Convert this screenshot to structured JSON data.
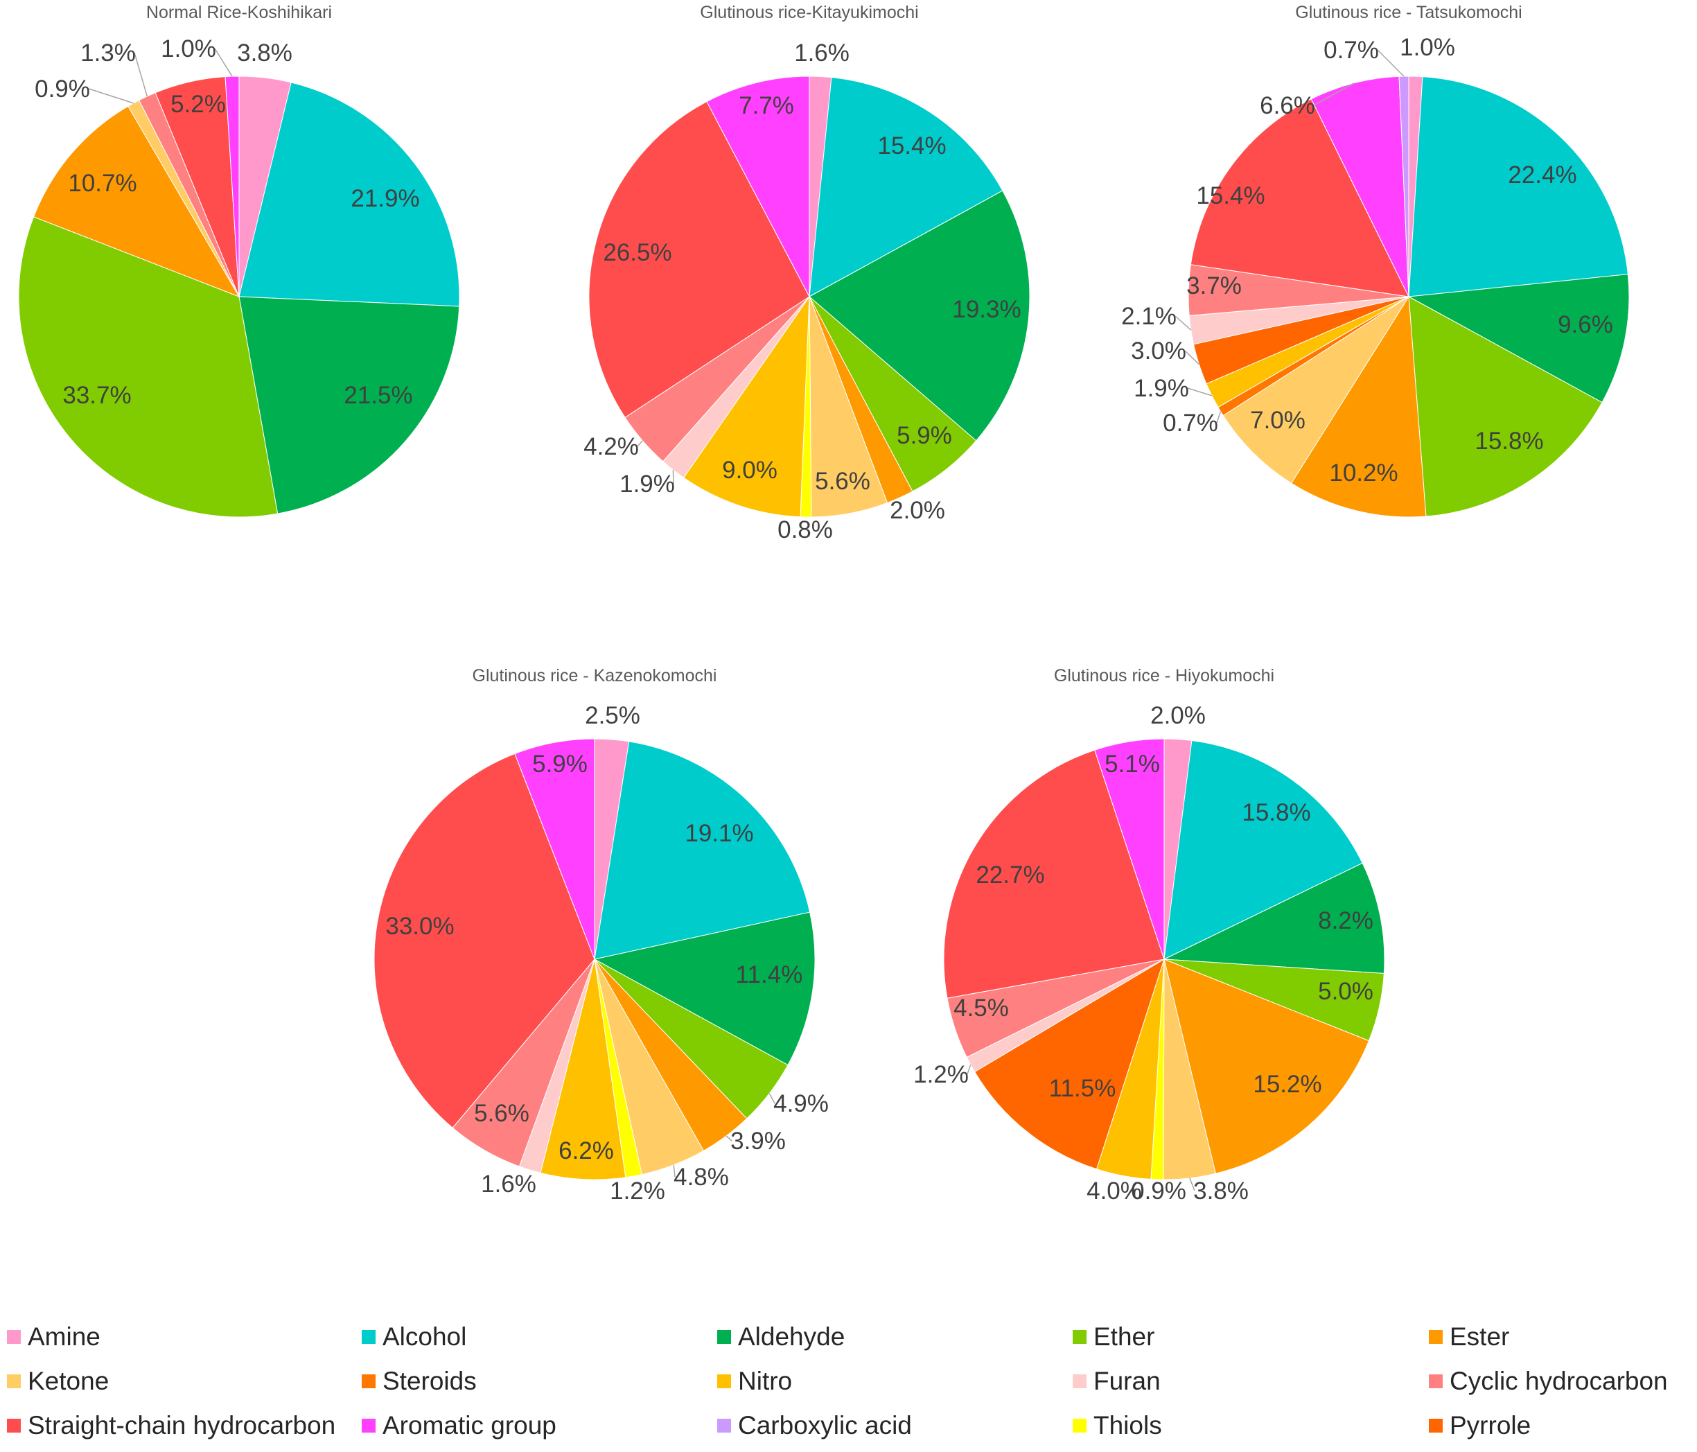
{
  "chart_data": {
    "type": "pie",
    "category_colors": {
      "Amine": "#ff99cc",
      "Alcohol": "#00cccc",
      "Aldehyde": "#00b050",
      "Ether": "#80cc00",
      "Ester": "#ff9900",
      "Ketone": "#ffcc66",
      "Steroids": "#ff7700",
      "Nitro": "#ffc000",
      "Furan": "#ffcccc",
      "Cyclic hydrocarbon": "#ff8080",
      "Straight-chain hydrocarbon": "#ff4d4d",
      "Aromatic group": "#ff40ff",
      "Carboxylic acid": "#cc99ff",
      "Thiols": "#ffff00",
      "Pyrrole": "#ff6600"
    },
    "legend": [
      "Amine",
      "Alcohol",
      "Aldehyde",
      "Ether",
      "Ester",
      "Ketone",
      "Steroids",
      "Nitro",
      "Furan",
      "Cyclic hydrocarbon",
      "Straight-chain hydrocarbon",
      "Aromatic group",
      "Carboxylic acid",
      "Thiols",
      "Pyrrole"
    ],
    "pies": [
      {
        "title": "Normal Rice-Koshihikari",
        "slices": [
          {
            "category": "Amine",
            "value": 3.8,
            "label": "3.8%"
          },
          {
            "category": "Alcohol",
            "value": 21.9,
            "label": "21.9%"
          },
          {
            "category": "Aldehyde",
            "value": 21.5,
            "label": "21.5%"
          },
          {
            "category": "Ether",
            "value": 33.7,
            "label": "33.7%"
          },
          {
            "category": "Ester",
            "value": 10.7,
            "label": "10.7%"
          },
          {
            "category": "Ketone",
            "value": 0.9,
            "label": "0.9%"
          },
          {
            "category": "Cyclic hydrocarbon",
            "value": 1.3,
            "label": "1.3%"
          },
          {
            "category": "Straight-chain hydrocarbon",
            "value": 5.2,
            "label": "5.2%"
          },
          {
            "category": "Aromatic group",
            "value": 1.0,
            "label": "1.0%"
          }
        ]
      },
      {
        "title": "Glutinous rice-Kitayukimochi",
        "slices": [
          {
            "category": "Amine",
            "value": 1.6,
            "label": "1.6%"
          },
          {
            "category": "Alcohol",
            "value": 15.4,
            "label": "15.4%"
          },
          {
            "category": "Aldehyde",
            "value": 19.3,
            "label": "19.3%"
          },
          {
            "category": "Ether",
            "value": 5.9,
            "label": "5.9%"
          },
          {
            "category": "Ester",
            "value": 2.0,
            "label": "2.0%"
          },
          {
            "category": "Ketone",
            "value": 5.6,
            "label": "5.6%"
          },
          {
            "category": "Thiols",
            "value": 0.8,
            "label": "0.8%"
          },
          {
            "category": "Nitro",
            "value": 9.0,
            "label": "9.0%"
          },
          {
            "category": "Furan",
            "value": 1.9,
            "label": "1.9%"
          },
          {
            "category": "Cyclic hydrocarbon",
            "value": 4.2,
            "label": "4.2%"
          },
          {
            "category": "Straight-chain hydrocarbon",
            "value": 26.5,
            "label": "26.5%"
          },
          {
            "category": "Aromatic group",
            "value": 7.7,
            "label": "7.7%"
          }
        ]
      },
      {
        "title": "Glutinous rice - Tatsukomochi",
        "slices": [
          {
            "category": "Amine",
            "value": 1.0,
            "label": "1.0%"
          },
          {
            "category": "Alcohol",
            "value": 22.4,
            "label": "22.4%"
          },
          {
            "category": "Aldehyde",
            "value": 9.6,
            "label": "9.6%"
          },
          {
            "category": "Ether",
            "value": 15.8,
            "label": "15.8%"
          },
          {
            "category": "Ester",
            "value": 10.2,
            "label": "10.2%"
          },
          {
            "category": "Ketone",
            "value": 7.0,
            "label": "7.0%"
          },
          {
            "category": "Steroids",
            "value": 0.7,
            "label": "0.7%"
          },
          {
            "category": "Nitro",
            "value": 1.9,
            "label": "1.9%"
          },
          {
            "category": "Pyrrole",
            "value": 3.0,
            "label": "3.0%"
          },
          {
            "category": "Furan",
            "value": 2.1,
            "label": "2.1%"
          },
          {
            "category": "Cyclic hydrocarbon",
            "value": 3.7,
            "label": "3.7%"
          },
          {
            "category": "Straight-chain hydrocarbon",
            "value": 15.4,
            "label": "15.4%"
          },
          {
            "category": "Aromatic group",
            "value": 6.6,
            "label": "6.6%"
          },
          {
            "category": "Carboxylic acid",
            "value": 0.7,
            "label": "0.7%"
          }
        ]
      },
      {
        "title": "Glutinous rice - Kazenokomochi",
        "slices": [
          {
            "category": "Amine",
            "value": 2.5,
            "label": "2.5%"
          },
          {
            "category": "Alcohol",
            "value": 19.1,
            "label": "19.1%"
          },
          {
            "category": "Aldehyde",
            "value": 11.4,
            "label": "11.4%"
          },
          {
            "category": "Ether",
            "value": 4.9,
            "label": "4.9%"
          },
          {
            "category": "Ester",
            "value": 3.9,
            "label": "3.9%"
          },
          {
            "category": "Ketone",
            "value": 4.8,
            "label": "4.8%"
          },
          {
            "category": "Thiols",
            "value": 1.2,
            "label": "1.2%"
          },
          {
            "category": "Nitro",
            "value": 6.2,
            "label": "6.2%"
          },
          {
            "category": "Furan",
            "value": 1.6,
            "label": "1.6%"
          },
          {
            "category": "Cyclic hydrocarbon",
            "value": 5.6,
            "label": "5.6%"
          },
          {
            "category": "Straight-chain hydrocarbon",
            "value": 33.0,
            "label": "33.0%"
          },
          {
            "category": "Aromatic group",
            "value": 5.9,
            "label": "5.9%"
          }
        ]
      },
      {
        "title": "Glutinous rice - Hiyokumochi",
        "slices": [
          {
            "category": "Amine",
            "value": 2.0,
            "label": "2.0%"
          },
          {
            "category": "Alcohol",
            "value": 15.8,
            "label": "15.8%"
          },
          {
            "category": "Aldehyde",
            "value": 8.2,
            "label": "8.2%"
          },
          {
            "category": "Ether",
            "value": 5.0,
            "label": "5.0%"
          },
          {
            "category": "Ester",
            "value": 15.2,
            "label": "15.2%"
          },
          {
            "category": "Ketone",
            "value": 3.8,
            "label": "3.8%"
          },
          {
            "category": "Thiols",
            "value": 0.9,
            "label": "0.9%"
          },
          {
            "category": "Nitro",
            "value": 4.0,
            "label": "4.0%"
          },
          {
            "category": "Pyrrole",
            "value": 11.5,
            "label": "11.5%"
          },
          {
            "category": "Furan",
            "value": 1.2,
            "label": "1.2%"
          },
          {
            "category": "Cyclic hydrocarbon",
            "value": 4.5,
            "label": "4.5%"
          },
          {
            "category": "Straight-chain hydrocarbon",
            "value": 22.7,
            "label": "22.7%"
          },
          {
            "category": "Aromatic group",
            "value": 5.1,
            "label": "5.1%"
          }
        ]
      }
    ]
  }
}
